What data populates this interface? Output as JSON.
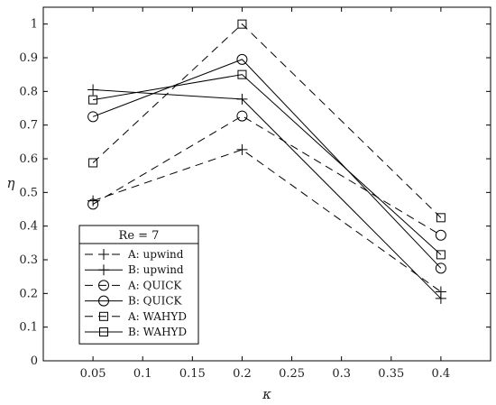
{
  "chart_data": {
    "type": "line",
    "xlabel": "κ",
    "ylabel": "η",
    "xlim": [
      0.0,
      0.45
    ],
    "ylim": [
      0,
      1.05
    ],
    "xticks": [
      "0.05",
      "0.1",
      "0.15",
      "0.2",
      "0.25",
      "0.3",
      "0.35",
      "0.4"
    ],
    "yticks": [
      "0",
      "0.1",
      "0.2",
      "0.3",
      "0.4",
      "0.5",
      "0.6",
      "0.7",
      "0.8",
      "0.9",
      "1"
    ],
    "x": [
      0.05,
      0.2,
      0.4
    ],
    "grid": false,
    "legend_title": "Re = 7",
    "legend_position": "lower-left",
    "series": [
      {
        "name": "A: upwind",
        "values": [
          0.475,
          0.627,
          0.205
        ],
        "marker": "plus",
        "dash": "dashed",
        "color": "#000000"
      },
      {
        "name": "B: upwind",
        "values": [
          0.805,
          0.777,
          0.185
        ],
        "marker": "plus",
        "dash": "solid",
        "color": "#000000"
      },
      {
        "name": "A: QUICK",
        "values": [
          0.465,
          0.727,
          0.373
        ],
        "marker": "circle",
        "dash": "dashed",
        "color": "#000000"
      },
      {
        "name": "B: QUICK",
        "values": [
          0.725,
          0.895,
          0.275
        ],
        "marker": "circle",
        "dash": "solid",
        "color": "#000000"
      },
      {
        "name": "A: WAHYD",
        "values": [
          0.588,
          1.0,
          0.425
        ],
        "marker": "square",
        "dash": "dashed",
        "color": "#000000"
      },
      {
        "name": "B: WAHYD",
        "values": [
          0.775,
          0.85,
          0.315
        ],
        "marker": "square",
        "dash": "solid",
        "color": "#000000"
      }
    ]
  }
}
